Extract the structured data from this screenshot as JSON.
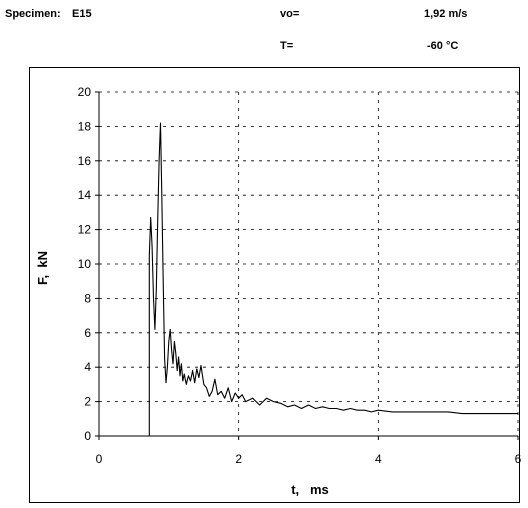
{
  "header": {
    "specimen_label": "Specimen:",
    "specimen_value": "E15",
    "vo_label": "vo=",
    "vo_value": "1,92 m/s",
    "t_label": "T=",
    "t_value": "-60 °C"
  },
  "chart_data": {
    "type": "line",
    "title": "",
    "xlabel": "t,   ms",
    "ylabel": "F,  kN",
    "xlim": [
      0,
      6
    ],
    "ylim": [
      0,
      20
    ],
    "x_ticks": [
      0,
      2,
      4,
      6
    ],
    "y_ticks": [
      0,
      2,
      4,
      6,
      8,
      10,
      12,
      14,
      16,
      18,
      20
    ],
    "grid": "dashed",
    "series": [
      {
        "color": "#000000",
        "x": [
          0.0,
          0.72,
          0.72,
          0.74,
          0.76,
          0.78,
          0.8,
          0.82,
          0.84,
          0.86,
          0.88,
          0.9,
          0.92,
          0.94,
          0.96,
          0.98,
          1.0,
          1.02,
          1.04,
          1.06,
          1.08,
          1.1,
          1.12,
          1.14,
          1.16,
          1.18,
          1.2,
          1.22,
          1.25,
          1.28,
          1.31,
          1.34,
          1.37,
          1.4,
          1.43,
          1.46,
          1.5,
          1.54,
          1.58,
          1.62,
          1.66,
          1.7,
          1.75,
          1.8,
          1.85,
          1.9,
          1.95,
          2.0,
          2.05,
          2.1,
          2.2,
          2.3,
          2.4,
          2.5,
          2.6,
          2.7,
          2.8,
          2.9,
          3.0,
          3.1,
          3.2,
          3.3,
          3.4,
          3.5,
          3.6,
          3.7,
          3.8,
          3.9,
          4.0,
          4.2,
          4.4,
          4.6,
          4.8,
          5.0,
          5.2,
          5.4,
          5.6,
          5.8,
          6.0
        ],
        "values": [
          0.0,
          0.0,
          10.5,
          12.7,
          11.0,
          8.0,
          6.2,
          8.5,
          12.5,
          16.0,
          18.2,
          14.0,
          9.0,
          4.5,
          3.1,
          4.0,
          5.5,
          6.2,
          5.0,
          4.2,
          5.5,
          4.8,
          3.8,
          4.6,
          3.5,
          4.2,
          3.2,
          3.6,
          3.0,
          3.5,
          3.2,
          3.8,
          3.1,
          3.9,
          3.4,
          4.1,
          3.0,
          2.8,
          2.3,
          2.6,
          3.3,
          2.4,
          2.6,
          2.2,
          2.8,
          2.0,
          2.5,
          2.2,
          2.4,
          2.0,
          2.2,
          1.8,
          2.2,
          2.0,
          1.9,
          1.7,
          1.8,
          1.6,
          1.8,
          1.6,
          1.7,
          1.6,
          1.6,
          1.5,
          1.6,
          1.5,
          1.5,
          1.4,
          1.5,
          1.4,
          1.4,
          1.4,
          1.4,
          1.4,
          1.3,
          1.3,
          1.3,
          1.3,
          1.3
        ]
      }
    ]
  }
}
